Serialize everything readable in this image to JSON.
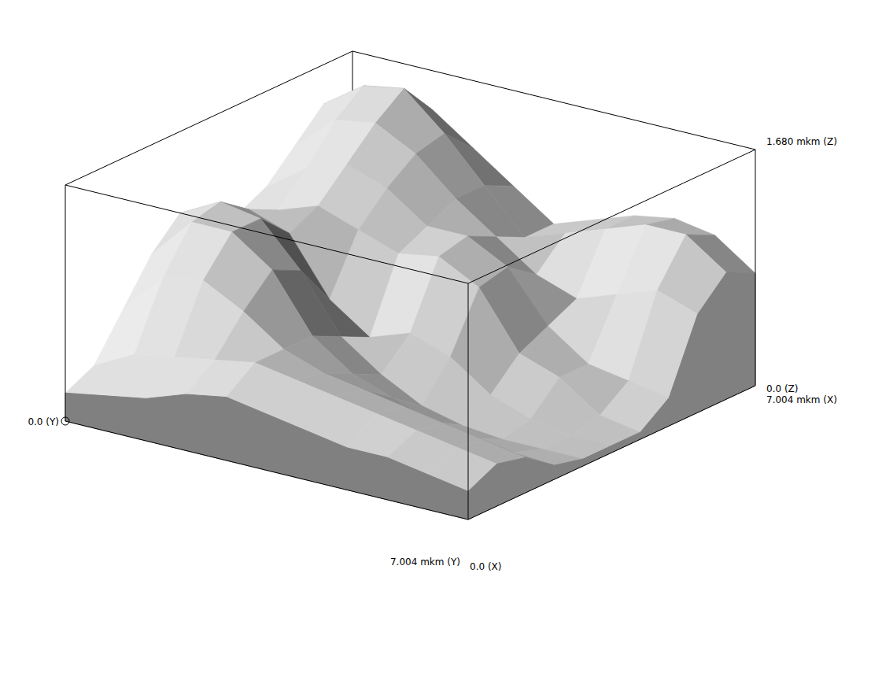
{
  "chart_data": {
    "type": "surface3d",
    "xlim": [
      0,
      7.004
    ],
    "ylim": [
      0,
      7.004
    ],
    "zlim": [
      0,
      1.68
    ],
    "xticks": [
      {
        "value": 0,
        "label": "0.0 (X)"
      },
      {
        "value": 7.004,
        "label": "7.004 mkm (X)"
      }
    ],
    "yticks": [
      {
        "value": 0,
        "label": "0.0 (Y)"
      },
      {
        "value": 7.004,
        "label": "7.004 mkm (Y)"
      }
    ],
    "zticks": [
      {
        "value": 0,
        "label": "0.0 (Z)"
      },
      {
        "value": 1.68,
        "label": "1.680 mkm (Z)"
      }
    ],
    "x": [
      0,
      0.7,
      1.4,
      2.1,
      2.8,
      3.5,
      4.2,
      4.9,
      5.6,
      6.3,
      7.004
    ],
    "y": [
      0,
      0.7,
      1.4,
      2.1,
      2.8,
      3.5,
      4.2,
      4.9,
      5.6,
      6.3,
      7.004
    ],
    "z": [
      [
        0.2,
        0.3,
        0.6,
        0.9,
        1.1,
        1.0,
        0.9,
        1.0,
        1.2,
        1.4,
        1.3
      ],
      [
        0.25,
        0.45,
        0.9,
        1.2,
        1.25,
        1.1,
        1.0,
        1.2,
        1.45,
        1.6,
        1.4
      ],
      [
        0.3,
        0.5,
        0.95,
        1.2,
        1.2,
        1.0,
        1.1,
        1.3,
        1.5,
        1.65,
        1.4
      ],
      [
        0.4,
        0.55,
        0.8,
        1.0,
        0.9,
        0.6,
        1.0,
        1.2,
        1.35,
        1.4,
        1.2
      ],
      [
        0.45,
        0.6,
        0.6,
        0.6,
        0.5,
        0.4,
        0.9,
        1.0,
        1.1,
        1.1,
        1.0
      ],
      [
        0.4,
        0.55,
        0.5,
        0.4,
        0.3,
        0.5,
        0.95,
        1.0,
        0.9,
        0.8,
        0.8
      ],
      [
        0.35,
        0.5,
        0.45,
        0.3,
        0.15,
        0.4,
        0.8,
        0.85,
        0.7,
        0.9,
        0.9
      ],
      [
        0.3,
        0.45,
        0.4,
        0.2,
        0.08,
        0.2,
        0.4,
        0.5,
        0.6,
        1.0,
        1.0
      ],
      [
        0.3,
        0.4,
        0.35,
        0.15,
        0.05,
        0.1,
        0.3,
        0.3,
        0.7,
        1.1,
        1.05
      ],
      [
        0.25,
        0.35,
        0.3,
        0.12,
        0.05,
        0.05,
        0.1,
        0.25,
        0.8,
        1.1,
        1.0
      ],
      [
        0.2,
        0.3,
        0.25,
        0.1,
        0.05,
        0.05,
        0.05,
        0.2,
        0.7,
        0.9,
        0.8
      ]
    ]
  }
}
